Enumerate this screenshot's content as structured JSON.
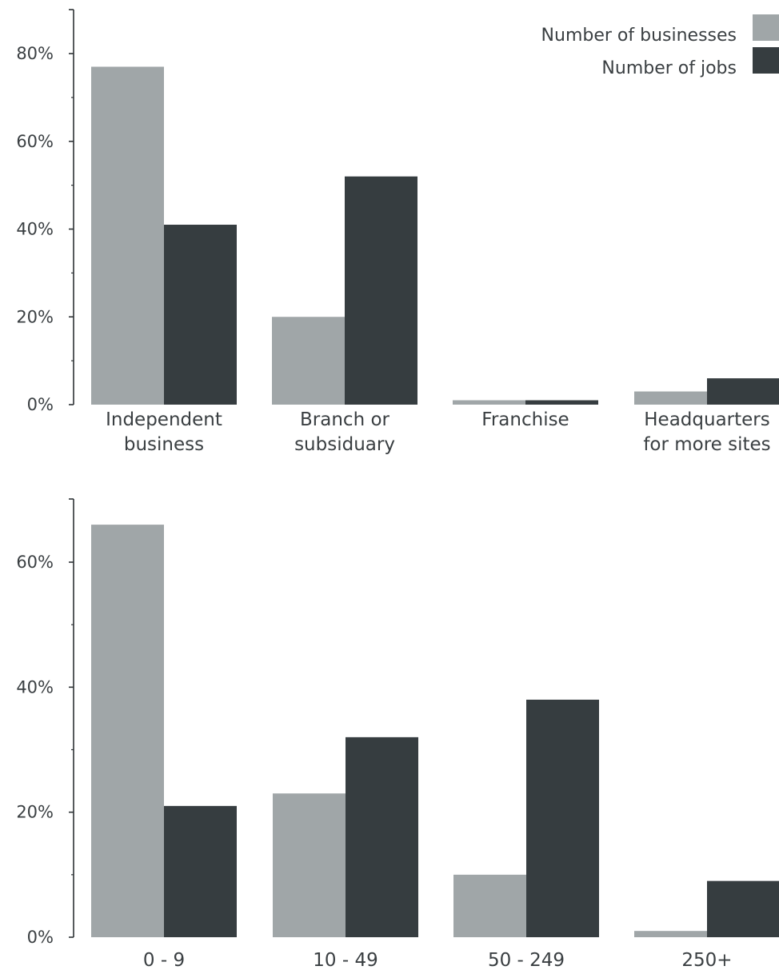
{
  "colors": {
    "businesses": "#a0a6a8",
    "jobs": "#363d40"
  },
  "legend": {
    "businesses_label": "Number of businesses",
    "jobs_label": "Number of jobs"
  },
  "chart_data": [
    {
      "type": "bar",
      "title": "",
      "xlabel": "",
      "ylabel": "",
      "categories": [
        [
          "Independent",
          "business"
        ],
        [
          "Branch or",
          "subsiduary"
        ],
        [
          "Franchise"
        ],
        [
          "Headquarters",
          "for more sites"
        ]
      ],
      "series": [
        {
          "name": "Number of businesses",
          "values": [
            77,
            20,
            1,
            3
          ]
        },
        {
          "name": "Number of jobs",
          "values": [
            41,
            52,
            1,
            6
          ]
        }
      ],
      "ylim": [
        0,
        90
      ],
      "yticks": [
        0,
        20,
        40,
        60,
        80
      ],
      "ytick_labels": [
        "0%",
        "20%",
        "40%",
        "60%",
        "80%"
      ],
      "grid": false,
      "legend": "top-right"
    },
    {
      "type": "bar",
      "title": "",
      "xlabel": "",
      "ylabel": "",
      "categories": [
        [
          "0 - 9"
        ],
        [
          "10 - 49"
        ],
        [
          "50 - 249"
        ],
        [
          "250+"
        ]
      ],
      "series": [
        {
          "name": "Number of businesses",
          "values": [
            66,
            23,
            10,
            1
          ]
        },
        {
          "name": "Number of jobs",
          "values": [
            21,
            32,
            38,
            9
          ]
        }
      ],
      "ylim": [
        0,
        70
      ],
      "yticks": [
        0,
        20,
        40,
        60
      ],
      "ytick_labels": [
        "0%",
        "20%",
        "40%",
        "60%"
      ],
      "grid": false,
      "legend": "none"
    }
  ]
}
